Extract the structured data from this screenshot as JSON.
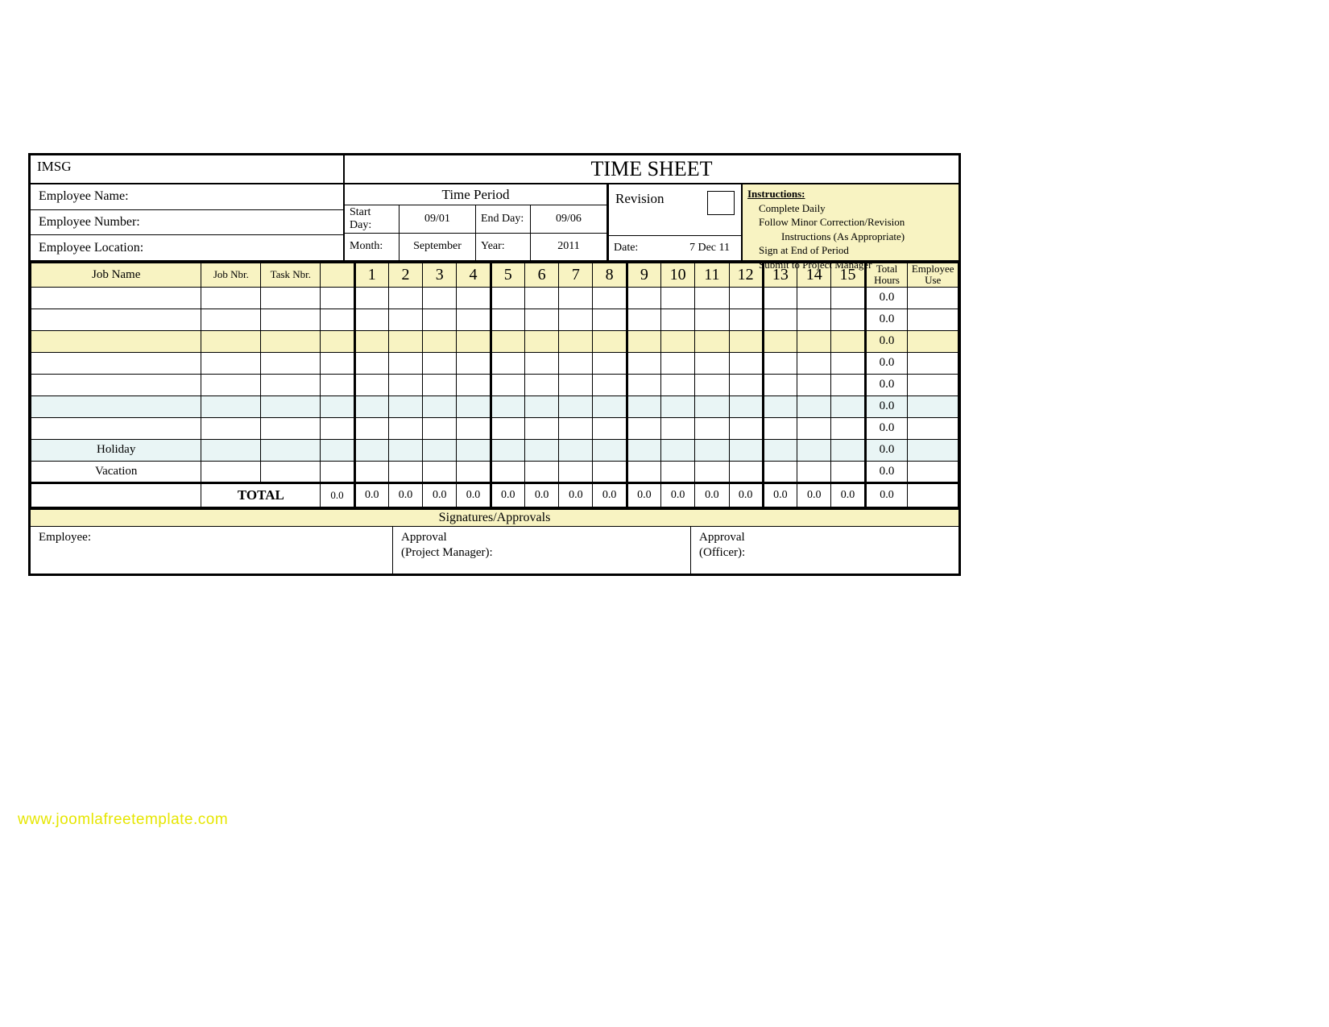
{
  "org": "IMSG",
  "title": "TIME SHEET",
  "employee": {
    "name_label": "Employee Name:",
    "number_label": "Employee Number:",
    "location_label": "Employee Location:"
  },
  "period": {
    "header": "Time Period",
    "start_day_label": "Start Day:",
    "start_day": "09/01",
    "end_day_label": "End Day:",
    "end_day": "09/06",
    "month_label": "Month:",
    "month": "September",
    "year_label": "Year:",
    "year": "2011"
  },
  "revision": {
    "label": "Revision",
    "date_label": "Date:",
    "date": "7 Dec 11"
  },
  "instructions": {
    "header": "Instructions:",
    "l1": "Complete Daily",
    "l2": "Follow Minor Correction/Revision",
    "l2b": "Instructions (As Appropriate)",
    "l3": "Sign at End of Period",
    "l4": "Submit to Project Manager"
  },
  "columns": {
    "job_name": "Job Name",
    "job_nbr": "Job Nbr.",
    "task_nbr": "Task Nbr.",
    "total_hours": "Total Hours",
    "employee_use": "Employee Use",
    "days": [
      "1",
      "2",
      "3",
      "4",
      "5",
      "6",
      "7",
      "8",
      "9",
      "10",
      "11",
      "12",
      "13",
      "14",
      "15"
    ]
  },
  "rows": [
    {
      "job": "",
      "style": "white",
      "total": "0.0"
    },
    {
      "job": "",
      "style": "white",
      "total": "0.0"
    },
    {
      "job": "",
      "style": "yellow",
      "total": "0.0"
    },
    {
      "job": "",
      "style": "white",
      "total": "0.0"
    },
    {
      "job": "",
      "style": "white",
      "total": "0.0"
    },
    {
      "job": "",
      "style": "blue",
      "total": "0.0"
    },
    {
      "job": "",
      "style": "white",
      "total": "0.0"
    },
    {
      "job": "Holiday",
      "style": "blue",
      "total": "0.0"
    },
    {
      "job": "Vacation",
      "style": "white",
      "total": "0.0"
    }
  ],
  "totals": {
    "label": "TOTAL",
    "days": [
      "0.0",
      "0.0",
      "0.0",
      "0.0",
      "0.0",
      "0.0",
      "0.0",
      "0.0",
      "0.0",
      "0.0",
      "0.0",
      "0.0",
      "0.0",
      "0.0",
      "0.0"
    ],
    "grand": "0.0"
  },
  "signatures": {
    "header": "Signatures/Approvals",
    "employee": "Employee:",
    "approval1a": "Approval",
    "approval1b": "(Project Manager):",
    "approval2a": "Approval",
    "approval2b": "(Officer):"
  },
  "watermark": "www.joomlafreetemplate.com",
  "colors": {
    "yellow": "#f8f3c2",
    "blue": "#e9f5f5",
    "border": "#000000",
    "watermark": "#e6e600"
  }
}
